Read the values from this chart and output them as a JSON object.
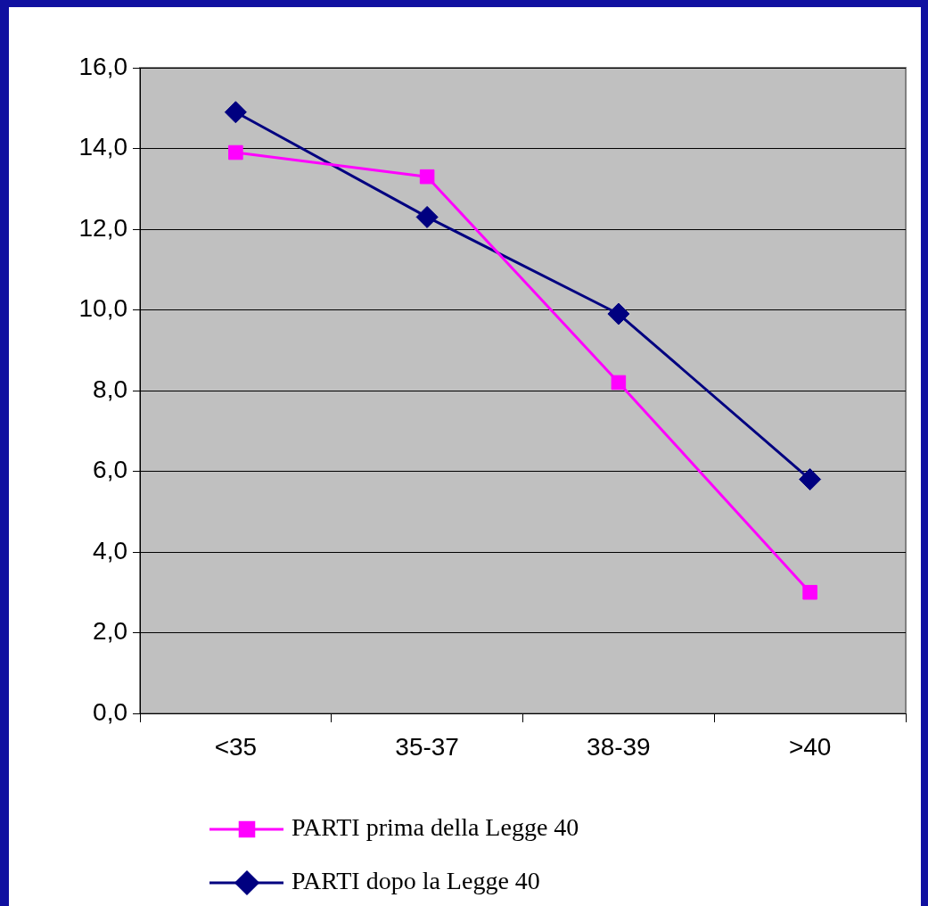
{
  "chart_data": {
    "type": "line",
    "categories": [
      "<35",
      "35-37",
      "38-39",
      ">40"
    ],
    "series": [
      {
        "name": "PARTI prima della Legge 40",
        "color": "#ff00ff",
        "marker": "square",
        "values": [
          13.9,
          13.3,
          8.2,
          3.0
        ]
      },
      {
        "name": "PARTI dopo la Legge 40",
        "color": "#000080",
        "marker": "diamond",
        "values": [
          14.9,
          12.3,
          9.9,
          5.8
        ]
      }
    ],
    "ylim": [
      0,
      16
    ],
    "yticks": [
      {
        "value": 0,
        "label": "0,0"
      },
      {
        "value": 2,
        "label": "2,0"
      },
      {
        "value": 4,
        "label": "4,0"
      },
      {
        "value": 6,
        "label": "6,0"
      },
      {
        "value": 8,
        "label": "8,0"
      },
      {
        "value": 10,
        "label": "10,0"
      },
      {
        "value": 12,
        "label": "12,0"
      },
      {
        "value": 14,
        "label": "14,0"
      },
      {
        "value": 16,
        "label": "16,0"
      }
    ],
    "grid": "y",
    "legend": "bottom",
    "line_style": "solid"
  }
}
